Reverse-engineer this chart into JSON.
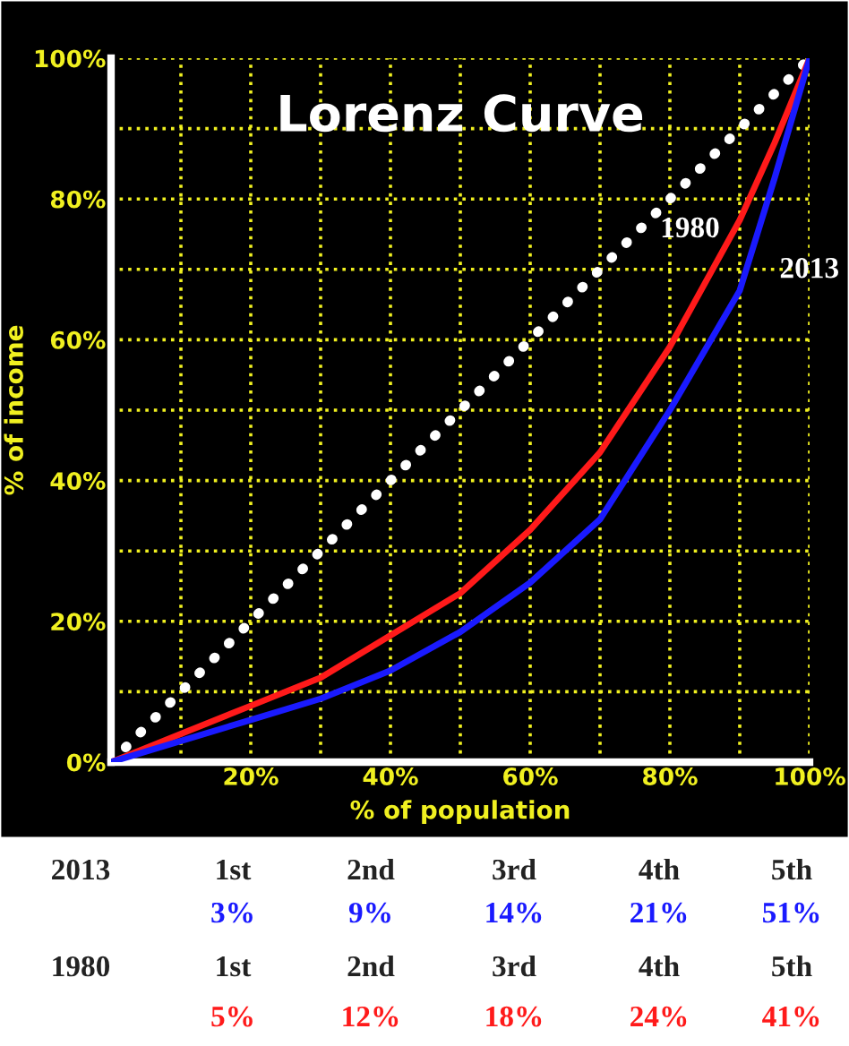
{
  "chart_data": {
    "type": "line",
    "title": "Lorenz Curve",
    "xlabel": "% of population",
    "ylabel": "% of income",
    "x": [
      0,
      10,
      20,
      30,
      40,
      50,
      60,
      70,
      80,
      90,
      95,
      100
    ],
    "series": [
      {
        "type": "line",
        "color": "#ffffff",
        "line_style": "dotted",
        "x": [
          0,
          100
        ],
        "values": [
          0,
          100
        ]
      },
      {
        "name": "1980",
        "color": "#ff1a1a",
        "values": [
          0,
          4,
          8,
          12,
          18,
          24,
          33,
          44,
          59,
          77,
          88,
          100
        ]
      },
      {
        "name": "2013",
        "color": "#1a1aff",
        "values": [
          0,
          3,
          6,
          9,
          13,
          18.5,
          25.5,
          34.5,
          50,
          67,
          83,
          100
        ]
      }
    ],
    "xlim": [
      0,
      100
    ],
    "ylim": [
      0,
      100
    ],
    "xticks": [
      {
        "value": 0,
        "label": null
      },
      {
        "value": 10,
        "label": null
      },
      {
        "value": 20,
        "label": "20%"
      },
      {
        "value": 30,
        "label": null
      },
      {
        "value": 40,
        "label": "40%"
      },
      {
        "value": 50,
        "label": null
      },
      {
        "value": 60,
        "label": "60%"
      },
      {
        "value": 70,
        "label": null
      },
      {
        "value": 80,
        "label": "80%"
      },
      {
        "value": 90,
        "label": null
      },
      {
        "value": 100,
        "label": "100%"
      }
    ],
    "yticks": [
      {
        "value": 0,
        "label": "0%"
      },
      {
        "value": 10,
        "label": null
      },
      {
        "value": 20,
        "label": "20%"
      },
      {
        "value": 30,
        "label": null
      },
      {
        "value": 40,
        "label": "40%"
      },
      {
        "value": 50,
        "label": null
      },
      {
        "value": 60,
        "label": "60%"
      },
      {
        "value": 70,
        "label": null
      },
      {
        "value": 80,
        "label": "80%"
      },
      {
        "value": 90,
        "label": null
      },
      {
        "value": 100,
        "label": "100%"
      }
    ],
    "grid": true,
    "legend": false,
    "annotations": [
      "2013",
      "1st",
      "2nd",
      "3rd",
      "4th",
      "5th",
      "3%",
      "9%",
      "14%",
      "21%",
      "51%",
      "1980",
      "1st",
      "2nd",
      "3rd",
      "4th",
      "5th",
      "5%",
      "12%",
      "18%",
      "24%",
      "41%"
    ]
  }
}
